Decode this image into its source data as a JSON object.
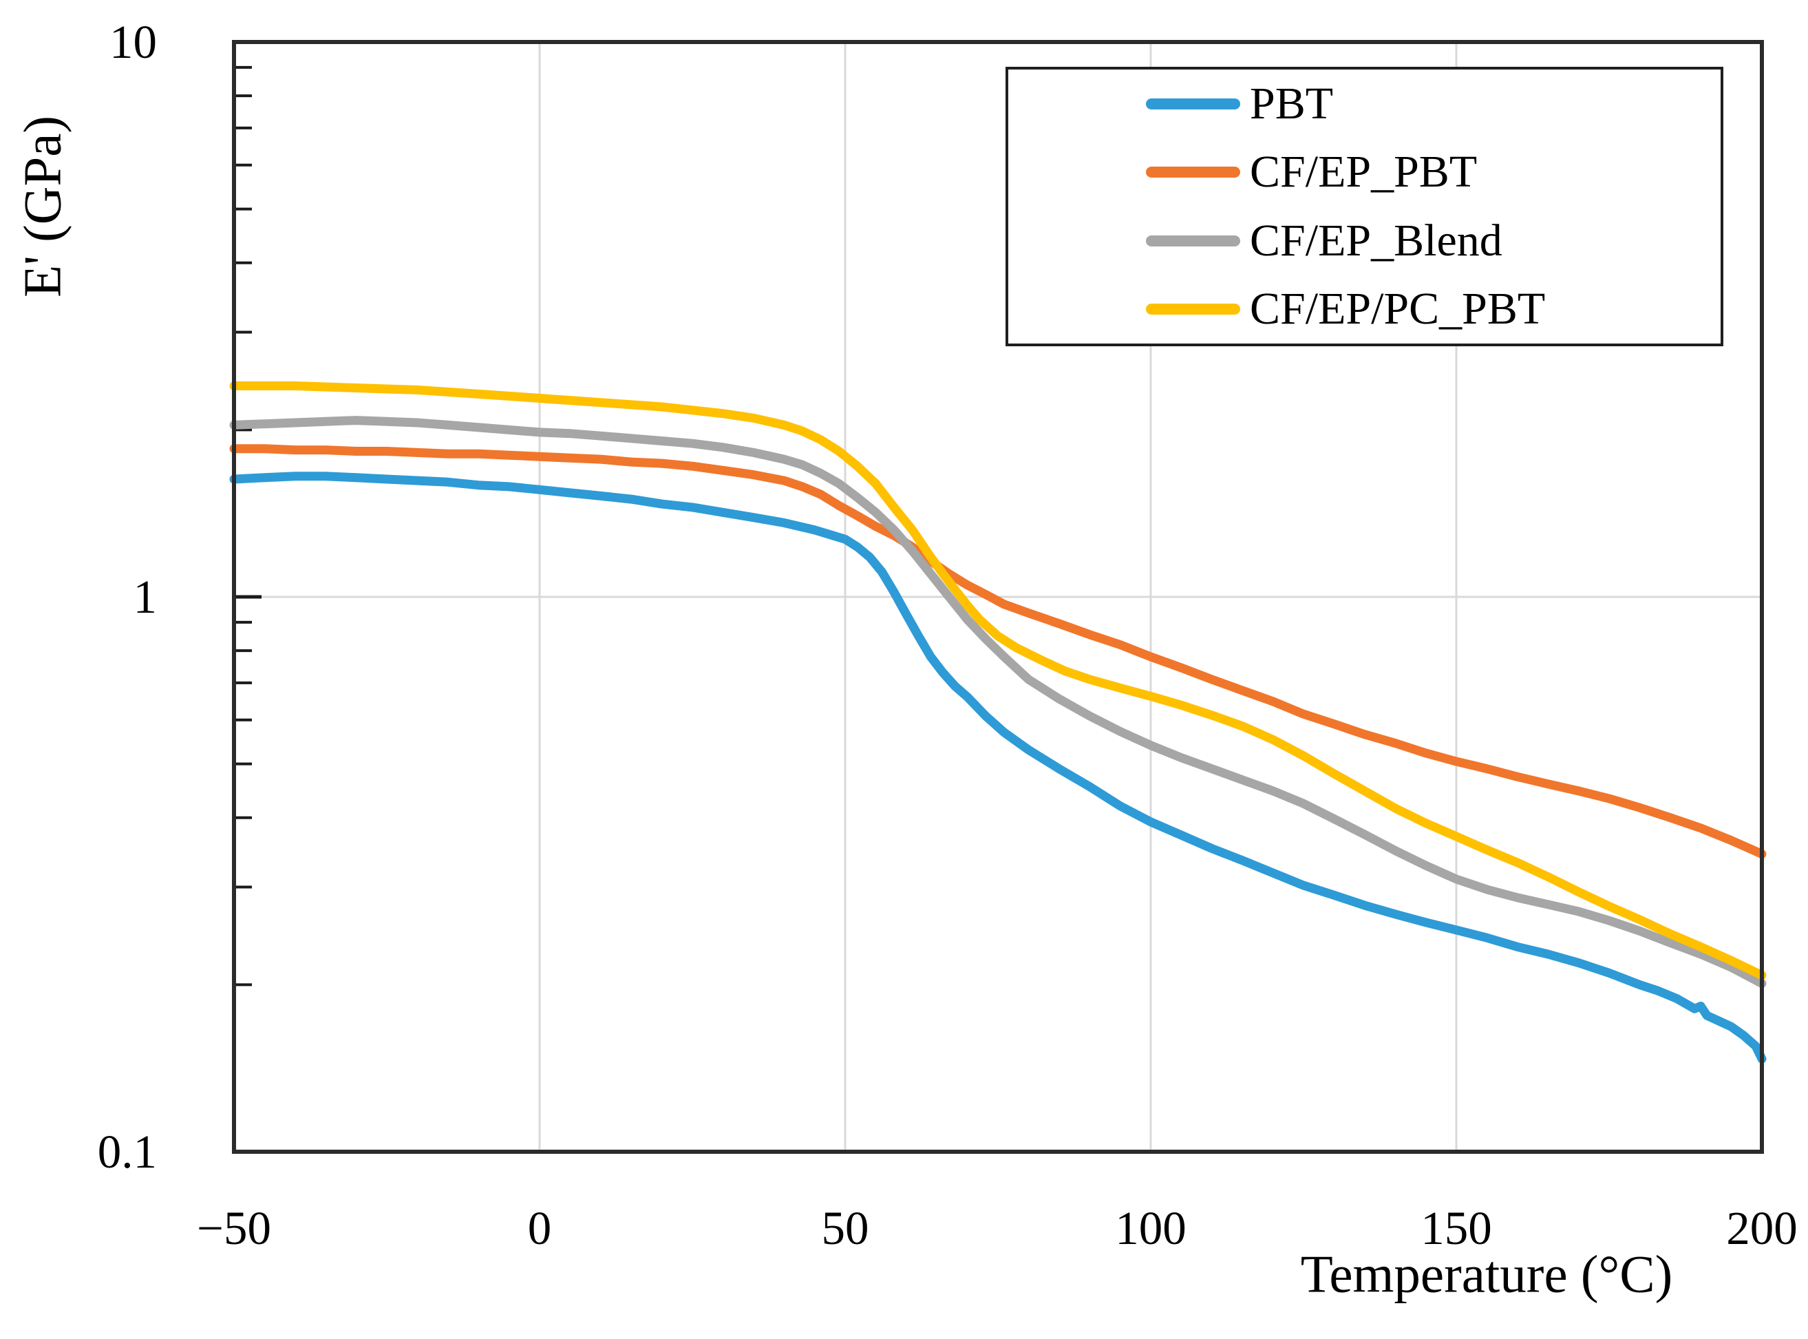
{
  "figure": {
    "background": "#ffffff"
  },
  "colors": {
    "grid": "#d9d9d9",
    "plot_border": "#2b2b2b",
    "tick": "#1a1a1a",
    "text": "#000000",
    "legend_border": "#1f1f1f"
  },
  "chart_data": {
    "type": "line",
    "title": "",
    "xlabel": "Temperature (°C)",
    "ylabel": "E' (GPa)",
    "grid_on": true,
    "legend_position": "top-right-inside",
    "x_axis": {
      "min": -50,
      "max": 200,
      "ticks": [
        -50,
        0,
        50,
        100,
        150,
        200
      ],
      "tick_labels": [
        "−50",
        "0",
        "50",
        "100",
        "150",
        "200"
      ],
      "gridlines": [
        0,
        50,
        100,
        150
      ]
    },
    "y_axis": {
      "scale": "log",
      "min": 0.1,
      "max": 10,
      "ticks": [
        10,
        1,
        0.1
      ],
      "tick_labels": [
        "10",
        "1",
        "0.1"
      ],
      "minor_ticks": [
        9,
        8,
        7,
        6,
        5,
        4,
        3,
        2,
        0.9,
        0.8,
        0.7,
        0.6,
        0.5,
        0.4,
        0.3,
        0.2
      ],
      "gridlines": [
        1
      ]
    },
    "series": [
      {
        "name": "PBT",
        "color": "#2E9BD6",
        "points": [
          [
            -50,
            1.63
          ],
          [
            -45,
            1.64
          ],
          [
            -40,
            1.65
          ],
          [
            -35,
            1.65
          ],
          [
            -30,
            1.64
          ],
          [
            -25,
            1.63
          ],
          [
            -20,
            1.62
          ],
          [
            -15,
            1.61
          ],
          [
            -10,
            1.59
          ],
          [
            -5,
            1.58
          ],
          [
            0,
            1.56
          ],
          [
            5,
            1.54
          ],
          [
            10,
            1.52
          ],
          [
            15,
            1.5
          ],
          [
            20,
            1.47
          ],
          [
            25,
            1.45
          ],
          [
            30,
            1.42
          ],
          [
            35,
            1.39
          ],
          [
            40,
            1.36
          ],
          [
            45,
            1.32
          ],
          [
            48,
            1.29
          ],
          [
            50,
            1.27
          ],
          [
            52,
            1.23
          ],
          [
            54,
            1.18
          ],
          [
            56,
            1.11
          ],
          [
            58,
            1.02
          ],
          [
            60,
            0.93
          ],
          [
            62,
            0.85
          ],
          [
            64,
            0.78
          ],
          [
            66,
            0.73
          ],
          [
            68,
            0.69
          ],
          [
            70,
            0.66
          ],
          [
            73,
            0.61
          ],
          [
            76,
            0.57
          ],
          [
            80,
            0.53
          ],
          [
            85,
            0.49
          ],
          [
            90,
            0.455
          ],
          [
            95,
            0.42
          ],
          [
            100,
            0.393
          ],
          [
            105,
            0.372
          ],
          [
            110,
            0.352
          ],
          [
            115,
            0.335
          ],
          [
            120,
            0.318
          ],
          [
            125,
            0.302
          ],
          [
            130,
            0.29
          ],
          [
            135,
            0.278
          ],
          [
            140,
            0.268
          ],
          [
            145,
            0.259
          ],
          [
            150,
            0.251
          ],
          [
            155,
            0.243
          ],
          [
            160,
            0.234
          ],
          [
            165,
            0.227
          ],
          [
            170,
            0.219
          ],
          [
            175,
            0.21
          ],
          [
            180,
            0.2
          ],
          [
            183,
            0.195
          ],
          [
            186,
            0.189
          ],
          [
            189,
            0.181
          ],
          [
            190,
            0.183
          ],
          [
            191,
            0.176
          ],
          [
            193,
            0.172
          ],
          [
            195,
            0.168
          ],
          [
            197,
            0.162
          ],
          [
            199,
            0.155
          ],
          [
            200,
            0.147
          ]
        ]
      },
      {
        "name": "CF/EP_PBT",
        "color": "#F0762C",
        "points": [
          [
            -50,
            1.85
          ],
          [
            -45,
            1.85
          ],
          [
            -40,
            1.84
          ],
          [
            -35,
            1.84
          ],
          [
            -30,
            1.83
          ],
          [
            -25,
            1.83
          ],
          [
            -20,
            1.82
          ],
          [
            -15,
            1.81
          ],
          [
            -10,
            1.81
          ],
          [
            -5,
            1.8
          ],
          [
            0,
            1.79
          ],
          [
            5,
            1.78
          ],
          [
            10,
            1.77
          ],
          [
            15,
            1.75
          ],
          [
            20,
            1.74
          ],
          [
            25,
            1.72
          ],
          [
            30,
            1.69
          ],
          [
            35,
            1.66
          ],
          [
            40,
            1.62
          ],
          [
            43,
            1.58
          ],
          [
            46,
            1.53
          ],
          [
            49,
            1.46
          ],
          [
            52,
            1.4
          ],
          [
            55,
            1.34
          ],
          [
            58,
            1.29
          ],
          [
            61,
            1.23
          ],
          [
            64,
            1.16
          ],
          [
            67,
            1.1
          ],
          [
            70,
            1.05
          ],
          [
            73,
            1.01
          ],
          [
            76,
            0.97
          ],
          [
            80,
            0.935
          ],
          [
            85,
            0.895
          ],
          [
            90,
            0.855
          ],
          [
            95,
            0.82
          ],
          [
            100,
            0.78
          ],
          [
            105,
            0.745
          ],
          [
            110,
            0.71
          ],
          [
            115,
            0.678
          ],
          [
            120,
            0.648
          ],
          [
            125,
            0.615
          ],
          [
            130,
            0.59
          ],
          [
            135,
            0.565
          ],
          [
            140,
            0.545
          ],
          [
            145,
            0.523
          ],
          [
            150,
            0.505
          ],
          [
            155,
            0.49
          ],
          [
            160,
            0.474
          ],
          [
            165,
            0.46
          ],
          [
            170,
            0.447
          ],
          [
            175,
            0.433
          ],
          [
            180,
            0.417
          ],
          [
            185,
            0.4
          ],
          [
            190,
            0.383
          ],
          [
            195,
            0.364
          ],
          [
            200,
            0.344
          ]
        ]
      },
      {
        "name": "CF/EP_Blend",
        "color": "#A6A6A6",
        "points": [
          [
            -50,
            2.04
          ],
          [
            -45,
            2.05
          ],
          [
            -40,
            2.06
          ],
          [
            -35,
            2.07
          ],
          [
            -30,
            2.08
          ],
          [
            -25,
            2.07
          ],
          [
            -20,
            2.06
          ],
          [
            -15,
            2.04
          ],
          [
            -10,
            2.02
          ],
          [
            -5,
            2.0
          ],
          [
            0,
            1.98
          ],
          [
            5,
            1.97
          ],
          [
            10,
            1.95
          ],
          [
            15,
            1.93
          ],
          [
            20,
            1.91
          ],
          [
            25,
            1.89
          ],
          [
            30,
            1.86
          ],
          [
            35,
            1.82
          ],
          [
            40,
            1.77
          ],
          [
            43,
            1.73
          ],
          [
            46,
            1.67
          ],
          [
            49,
            1.6
          ],
          [
            52,
            1.51
          ],
          [
            55,
            1.42
          ],
          [
            58,
            1.32
          ],
          [
            61,
            1.21
          ],
          [
            64,
            1.1
          ],
          [
            67,
            1.0
          ],
          [
            70,
            0.91
          ],
          [
            73,
            0.84
          ],
          [
            76,
            0.78
          ],
          [
            80,
            0.71
          ],
          [
            85,
            0.655
          ],
          [
            90,
            0.61
          ],
          [
            95,
            0.572
          ],
          [
            100,
            0.54
          ],
          [
            105,
            0.513
          ],
          [
            110,
            0.49
          ],
          [
            115,
            0.468
          ],
          [
            120,
            0.447
          ],
          [
            125,
            0.424
          ],
          [
            130,
            0.398
          ],
          [
            135,
            0.373
          ],
          [
            140,
            0.349
          ],
          [
            145,
            0.328
          ],
          [
            150,
            0.31
          ],
          [
            155,
            0.297
          ],
          [
            160,
            0.287
          ],
          [
            165,
            0.279
          ],
          [
            170,
            0.271
          ],
          [
            175,
            0.261
          ],
          [
            180,
            0.25
          ],
          [
            185,
            0.238
          ],
          [
            190,
            0.227
          ],
          [
            195,
            0.215
          ],
          [
            200,
            0.201
          ]
        ]
      },
      {
        "name": "CF/EP/PC_PBT",
        "color": "#FFC000",
        "points": [
          [
            -50,
            2.4
          ],
          [
            -45,
            2.4
          ],
          [
            -40,
            2.4
          ],
          [
            -35,
            2.39
          ],
          [
            -30,
            2.38
          ],
          [
            -25,
            2.37
          ],
          [
            -20,
            2.36
          ],
          [
            -15,
            2.34
          ],
          [
            -10,
            2.32
          ],
          [
            -5,
            2.3
          ],
          [
            0,
            2.28
          ],
          [
            5,
            2.26
          ],
          [
            10,
            2.24
          ],
          [
            15,
            2.22
          ],
          [
            20,
            2.2
          ],
          [
            25,
            2.17
          ],
          [
            30,
            2.14
          ],
          [
            35,
            2.1
          ],
          [
            40,
            2.04
          ],
          [
            43,
            1.99
          ],
          [
            46,
            1.92
          ],
          [
            49,
            1.83
          ],
          [
            52,
            1.72
          ],
          [
            55,
            1.6
          ],
          [
            58,
            1.45
          ],
          [
            61,
            1.32
          ],
          [
            64,
            1.18
          ],
          [
            66,
            1.1
          ],
          [
            68,
            1.03
          ],
          [
            70,
            0.965
          ],
          [
            72,
            0.91
          ],
          [
            75,
            0.85
          ],
          [
            78,
            0.81
          ],
          [
            82,
            0.77
          ],
          [
            86,
            0.735
          ],
          [
            90,
            0.71
          ],
          [
            95,
            0.685
          ],
          [
            100,
            0.662
          ],
          [
            105,
            0.638
          ],
          [
            110,
            0.612
          ],
          [
            115,
            0.585
          ],
          [
            120,
            0.553
          ],
          [
            125,
            0.517
          ],
          [
            130,
            0.48
          ],
          [
            135,
            0.447
          ],
          [
            140,
            0.416
          ],
          [
            145,
            0.391
          ],
          [
            150,
            0.37
          ],
          [
            155,
            0.35
          ],
          [
            160,
            0.332
          ],
          [
            165,
            0.313
          ],
          [
            170,
            0.294
          ],
          [
            175,
            0.277
          ],
          [
            180,
            0.262
          ],
          [
            185,
            0.247
          ],
          [
            190,
            0.234
          ],
          [
            195,
            0.221
          ],
          [
            200,
            0.208
          ]
        ]
      }
    ]
  }
}
